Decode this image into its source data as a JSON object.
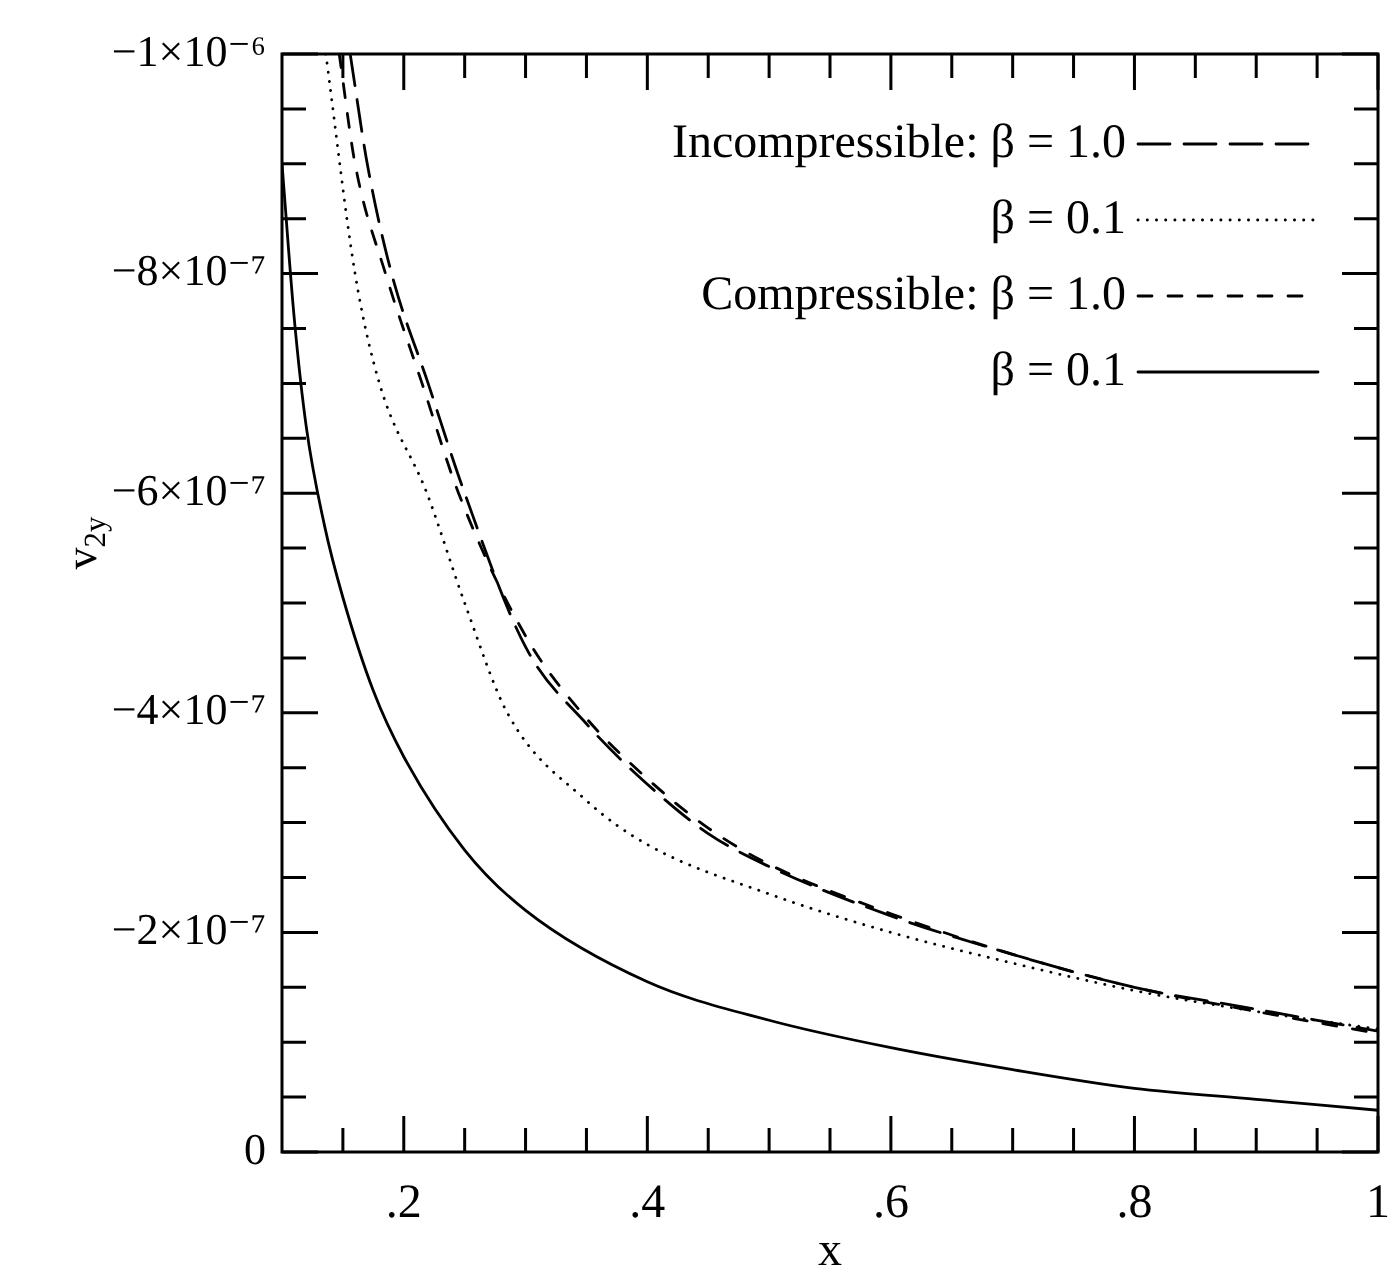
{
  "chart_data": {
    "type": "line",
    "xlabel": "x",
    "ylabel": "v$_{2y}$",
    "legend": "top right",
    "grid": false,
    "marker": "none",
    "xlim": [
      0.1,
      1
    ],
    "ylim": [
      0,
      -1e-06
    ],
    "xticks": [
      {
        "value": 0.15,
        "label": null
      },
      {
        "value": 0.2,
        "label": ".2"
      },
      {
        "value": 0.25,
        "label": null
      },
      {
        "value": 0.3,
        "label": null
      },
      {
        "value": 0.35,
        "label": null
      },
      {
        "value": 0.4,
        "label": ".4"
      },
      {
        "value": 0.45,
        "label": null
      },
      {
        "value": 0.5,
        "label": null
      },
      {
        "value": 0.55,
        "label": null
      },
      {
        "value": 0.6,
        "label": ".6"
      },
      {
        "value": 0.65,
        "label": null
      },
      {
        "value": 0.7,
        "label": null
      },
      {
        "value": 0.75,
        "label": null
      },
      {
        "value": 0.8,
        "label": ".8"
      },
      {
        "value": 0.85,
        "label": null
      },
      {
        "value": 0.9,
        "label": null
      },
      {
        "value": 0.95,
        "label": null
      },
      {
        "value": 1,
        "label": "1"
      }
    ],
    "yticks": [
      {
        "value": 0,
        "label": "0"
      },
      {
        "value": -5e-08,
        "label": null
      },
      {
        "value": -1e-07,
        "label": null
      },
      {
        "value": -1.5e-07,
        "label": null
      },
      {
        "value": -2e-07,
        "label": "−2×10⁻⁷"
      },
      {
        "value": -2.5e-07,
        "label": null
      },
      {
        "value": -3e-07,
        "label": null
      },
      {
        "value": -3.5e-07,
        "label": null
      },
      {
        "value": -4e-07,
        "label": "−4×10⁻⁷"
      },
      {
        "value": -4.5e-07,
        "label": null
      },
      {
        "value": -5e-07,
        "label": null
      },
      {
        "value": -5.5e-07,
        "label": null
      },
      {
        "value": -6e-07,
        "label": "−6×10⁻⁷"
      },
      {
        "value": -6.5e-07,
        "label": null
      },
      {
        "value": -7e-07,
        "label": null
      },
      {
        "value": -7.5e-07,
        "label": null
      },
      {
        "value": -8e-07,
        "label": "−8×10⁻⁷"
      },
      {
        "value": -8.5e-07,
        "label": null
      },
      {
        "value": -9e-07,
        "label": null
      },
      {
        "value": -9.5e-07,
        "label": null
      },
      {
        "value": -1e-06,
        "label": "−1×10⁻⁶"
      }
    ],
    "series": [
      {
        "name": "Incompressible: β = 1.0",
        "color": "#000000",
        "line_style": "dashed",
        "x": [
          0.156,
          0.17,
          0.19,
          0.22,
          0.25,
          0.3,
          0.35,
          0.4,
          0.45,
          0.5,
          0.6,
          0.7,
          0.8,
          0.9,
          1.0
        ],
        "values": [
          -1e-06,
          -9e-07,
          -8e-07,
          -7e-07,
          -6e-07,
          -4.6e-07,
          -3.9e-07,
          -3.35e-07,
          -2.9e-07,
          -2.6e-07,
          -2.15e-07,
          -1.8e-07,
          -1.5e-07,
          -1.3e-07,
          -1.1e-07
        ]
      },
      {
        "name": "β = 0.1",
        "color": "#000000",
        "line_style": "dotted",
        "x": [
          0.136,
          0.16,
          0.18,
          0.219,
          0.25,
          0.285,
          0.35,
          0.4,
          0.5,
          0.6,
          0.7,
          0.8,
          0.9,
          1.0
        ],
        "values": [
          -1e-06,
          -8e-07,
          -7e-07,
          -6e-07,
          -5e-07,
          -4e-07,
          -3.2e-07,
          -2.8e-07,
          -2.35e-07,
          -2e-07,
          -1.72e-07,
          -1.47e-07,
          -1.28e-07,
          -1.12e-07
        ]
      },
      {
        "name": "Compressible: β = 1.0",
        "color": "#000000",
        "line_style": "dashed",
        "x": [
          0.147,
          0.16,
          0.185,
          0.215,
          0.245,
          0.3,
          0.35,
          0.4,
          0.45,
          0.5,
          0.6,
          0.7,
          0.8,
          0.9,
          1.0
        ],
        "values": [
          -1e-06,
          -9e-07,
          -8e-07,
          -7e-07,
          -6e-07,
          -4.7e-07,
          -3.95e-07,
          -3.4e-07,
          -2.95e-07,
          -2.62e-07,
          -2.17e-07,
          -1.8e-07,
          -1.5e-07,
          -1.28e-07,
          -1.08e-07
        ]
      },
      {
        "name": "β = 0.1",
        "color": "#000000",
        "line_style": "solid",
        "x": [
          0.1,
          0.11,
          0.12,
          0.135,
          0.15,
          0.175,
          0.2,
          0.25,
          0.3,
          0.4,
          0.5,
          0.6,
          0.7,
          0.8,
          0.9,
          1.0
        ],
        "values": [
          -9e-07,
          -7.6e-07,
          -6.6e-07,
          -5.7e-07,
          -5.05e-07,
          -4.2e-07,
          -3.6e-07,
          -2.75e-07,
          -2.2e-07,
          -1.55e-07,
          -1.2e-07,
          -9.5e-08,
          -7.5e-08,
          -5.8e-08,
          -4.8e-08,
          -3.8e-08
        ]
      }
    ]
  }
}
